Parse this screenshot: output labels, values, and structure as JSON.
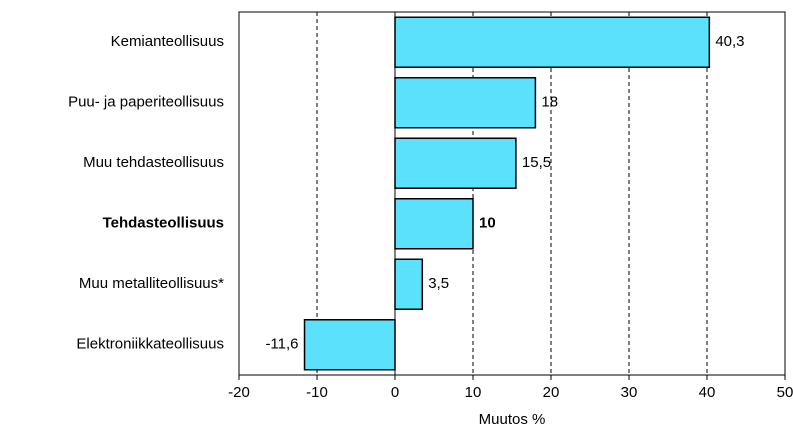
{
  "chart_data": {
    "type": "hbar",
    "categories": [
      "Kemianteollisuus",
      "Puu- ja paperiteollisuus",
      "Muu tehdasteollisuus",
      "Tehdasteollisuus",
      "Muu metalliteollisuus*",
      "Elektroniikkateollisuus"
    ],
    "values": [
      40.3,
      18,
      15.5,
      10,
      3.5,
      -11.6
    ],
    "value_labels": [
      "40,3",
      "18",
      "15,5",
      "10",
      "3,5",
      "-11,6"
    ],
    "bold_index": 3,
    "color": "#5ce1fc",
    "xlabel": "Muutos %",
    "xlim": [
      -20,
      50
    ],
    "xticks": [
      -20,
      -10,
      0,
      10,
      20,
      30,
      40,
      50
    ],
    "grid": true
  }
}
